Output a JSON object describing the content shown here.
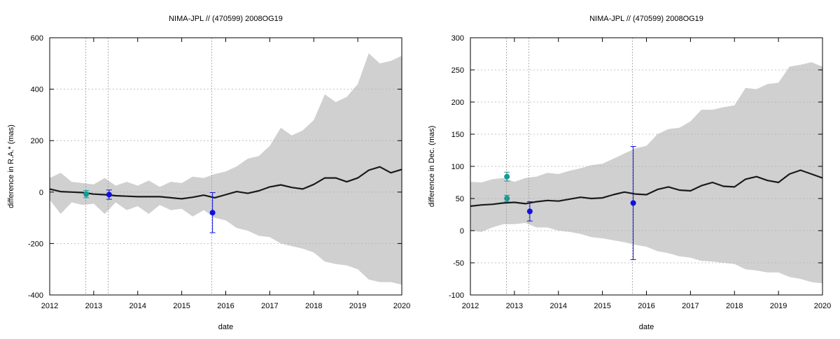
{
  "chart_data": [
    {
      "type": "line",
      "title": "NIMA-JPL // (470599) 2008OG19",
      "xlabel": "date",
      "ylabel": "difference in R.A.* (mas)",
      "xlim": [
        2012,
        2020
      ],
      "ylim": [
        -400,
        600
      ],
      "xticks": [
        2012,
        2013,
        2014,
        2015,
        2016,
        2017,
        2018,
        2019,
        2020
      ],
      "yticks": [
        -400,
        -200,
        0,
        200,
        400,
        600
      ],
      "grid": true,
      "vertical_markers": [
        2012.82,
        2013.33,
        2015.68
      ],
      "uncertainty_band": {
        "x": [
          2012.0,
          2012.25,
          2012.5,
          2012.75,
          2013.0,
          2013.25,
          2013.5,
          2013.75,
          2014.0,
          2014.25,
          2014.5,
          2014.75,
          2015.0,
          2015.25,
          2015.5,
          2015.75,
          2016.0,
          2016.25,
          2016.5,
          2016.75,
          2017.0,
          2017.25,
          2017.5,
          2017.75,
          2018.0,
          2018.25,
          2018.5,
          2018.75,
          2019.0,
          2019.25,
          2019.5,
          2019.75,
          2020.0
        ],
        "upper": [
          55,
          75,
          40,
          35,
          30,
          55,
          25,
          40,
          25,
          45,
          20,
          40,
          35,
          60,
          55,
          70,
          80,
          100,
          130,
          140,
          180,
          250,
          220,
          240,
          280,
          380,
          350,
          370,
          420,
          540,
          500,
          510,
          530
        ],
        "lower": [
          -30,
          -85,
          -40,
          -50,
          -45,
          -85,
          -40,
          -70,
          -55,
          -85,
          -50,
          -70,
          -65,
          -95,
          -70,
          -100,
          -110,
          -140,
          -150,
          -170,
          -175,
          -200,
          -210,
          -220,
          -235,
          -270,
          -280,
          -285,
          -300,
          -340,
          -350,
          -350,
          -360
        ]
      },
      "series": [
        {
          "x": [
            2012.0,
            2012.25,
            2012.5,
            2012.75,
            2013.0,
            2013.25,
            2013.5,
            2013.75,
            2014.0,
            2014.25,
            2014.5,
            2014.75,
            2015.0,
            2015.25,
            2015.5,
            2015.75,
            2016.0,
            2016.25,
            2016.5,
            2016.75,
            2017.0,
            2017.25,
            2017.5,
            2017.75,
            2018.0,
            2018.25,
            2018.5,
            2018.75,
            2019.0,
            2019.25,
            2019.5,
            2019.75,
            2020.0
          ],
          "y": [
            12,
            2,
            0,
            -2,
            -8,
            -10,
            -14,
            -16,
            -18,
            -18,
            -18,
            -22,
            -26,
            -20,
            -12,
            -22,
            -10,
            2,
            -5,
            5,
            20,
            28,
            18,
            12,
            30,
            55,
            55,
            40,
            55,
            85,
            98,
            75,
            88
          ]
        },
        {
          "x": [
            2012.83
          ],
          "y": [
            -8
          ],
          "err": [
            14
          ]
        },
        {
          "x": [
            2013.35,
            2015.7
          ],
          "y": [
            -10,
            -80
          ],
          "err": [
            18,
            78
          ]
        }
      ],
      "colors": {
        "band": "#d0d0d0",
        "line": "#1a1a1a",
        "point_a": "#169a96",
        "point_b": "#1010e0",
        "grid": "#b0b0b0"
      }
    },
    {
      "type": "line",
      "title": "NIMA-JPL // (470599) 2008OG19",
      "xlabel": "date",
      "ylabel": "difference in Dec. (mas)",
      "xlim": [
        2012,
        2020
      ],
      "ylim": [
        -100,
        300
      ],
      "xticks": [
        2012,
        2013,
        2014,
        2015,
        2016,
        2017,
        2018,
        2019,
        2020
      ],
      "yticks": [
        -100,
        -50,
        0,
        50,
        100,
        150,
        200,
        250,
        300
      ],
      "grid": true,
      "vertical_markers": [
        2012.82,
        2013.33,
        2015.68
      ],
      "uncertainty_band": {
        "x": [
          2012.0,
          2012.25,
          2012.5,
          2012.75,
          2013.0,
          2013.25,
          2013.5,
          2013.75,
          2014.0,
          2014.25,
          2014.5,
          2014.75,
          2015.0,
          2015.25,
          2015.5,
          2015.75,
          2016.0,
          2016.25,
          2016.5,
          2016.75,
          2017.0,
          2017.25,
          2017.5,
          2017.75,
          2018.0,
          2018.25,
          2018.5,
          2018.75,
          2019.0,
          2019.25,
          2019.5,
          2019.75,
          2020.0
        ],
        "upper": [
          76,
          75,
          80,
          82,
          76,
          82,
          84,
          90,
          88,
          93,
          97,
          102,
          104,
          112,
          120,
          128,
          132,
          150,
          158,
          160,
          170,
          188,
          188,
          192,
          195,
          222,
          220,
          228,
          230,
          255,
          258,
          262,
          255
        ],
        "lower": [
          0,
          -2,
          5,
          10,
          10,
          12,
          5,
          5,
          0,
          -2,
          -5,
          -10,
          -12,
          -15,
          -18,
          -22,
          -25,
          -32,
          -35,
          -40,
          -42,
          -47,
          -48,
          -50,
          -52,
          -60,
          -62,
          -65,
          -65,
          -72,
          -75,
          -80,
          -82
        ]
      },
      "series": [
        {
          "x": [
            2012.0,
            2012.25,
            2012.5,
            2012.75,
            2013.0,
            2013.25,
            2013.5,
            2013.75,
            2014.0,
            2014.25,
            2014.5,
            2014.75,
            2015.0,
            2015.25,
            2015.5,
            2015.75,
            2016.0,
            2016.25,
            2016.5,
            2016.75,
            2017.0,
            2017.25,
            2017.5,
            2017.75,
            2018.0,
            2018.25,
            2018.5,
            2018.75,
            2019.0,
            2019.25,
            2019.5,
            2019.75,
            2020.0
          ],
          "y": [
            38,
            40,
            41,
            43,
            44,
            42,
            45,
            47,
            46,
            49,
            52,
            50,
            51,
            56,
            60,
            57,
            56,
            64,
            68,
            63,
            62,
            70,
            75,
            69,
            68,
            80,
            84,
            78,
            75,
            88,
            94,
            88,
            82
          ]
        },
        {
          "x": [
            2012.83,
            2012.83
          ],
          "y": [
            84,
            50
          ],
          "err": [
            7,
            5
          ]
        },
        {
          "x": [
            2013.35,
            2015.7
          ],
          "y": [
            30,
            43
          ],
          "err": [
            15,
            88
          ]
        }
      ],
      "colors": {
        "band": "#d0d0d0",
        "line": "#1a1a1a",
        "point_a": "#169a96",
        "point_b": "#1010e0",
        "grid": "#b0b0b0"
      }
    }
  ]
}
